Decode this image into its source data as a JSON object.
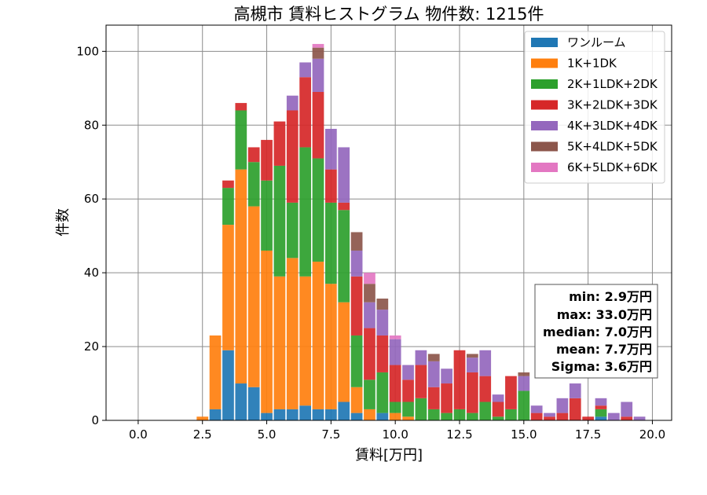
{
  "chart_data": {
    "type": "bar",
    "stacked": true,
    "title": "高槻市 賃料ヒストグラム 物件数: 1215件",
    "xlabel": "賃料[万円]",
    "ylabel": "件数",
    "x": [
      2.5,
      3.0,
      3.5,
      4.0,
      4.5,
      5.0,
      5.5,
      6.0,
      6.5,
      7.0,
      7.5,
      8.0,
      8.5,
      9.0,
      9.5,
      10.0,
      10.5,
      11.0,
      11.5,
      12.0,
      12.5,
      13.0,
      13.5,
      14.0,
      14.5,
      15.0,
      15.5,
      16.0,
      16.5,
      17.0,
      17.5,
      18.0,
      18.5,
      19.0,
      19.5
    ],
    "bin_width": 0.5,
    "xlim": [
      -1.25,
      20.75
    ],
    "ylim": [
      0,
      107.1
    ],
    "xtick_labels": [
      "0.0",
      "2.5",
      "5.0",
      "7.5",
      "10.0",
      "12.5",
      "15.0",
      "17.5",
      "20.0"
    ],
    "ytick_labels": [
      "0",
      "20",
      "40",
      "60",
      "80",
      "100"
    ],
    "grid": true,
    "legend_position": "top-right",
    "series": [
      {
        "name": "ワンルーム",
        "color": "#1f77b4",
        "values": [
          0,
          3,
          19,
          10,
          9,
          2,
          3,
          3,
          4,
          3,
          3,
          5,
          2,
          0,
          2,
          0,
          0,
          0,
          0,
          0,
          0,
          0,
          0,
          0,
          0,
          0,
          0,
          0,
          0,
          0,
          0,
          1,
          0,
          0,
          0
        ]
      },
      {
        "name": "1K+1DK",
        "color": "#ff7f0e",
        "values": [
          1,
          20,
          34,
          58,
          49,
          44,
          36,
          41,
          35,
          40,
          34,
          27,
          7,
          3,
          0,
          2,
          1,
          0,
          0,
          0,
          0,
          0,
          0,
          0,
          0,
          0,
          0,
          0,
          0,
          0,
          0,
          0,
          0,
          0,
          0
        ]
      },
      {
        "name": "2K+1LDK+2DK",
        "color": "#2ca02c",
        "values": [
          0,
          0,
          10,
          16,
          12,
          19,
          30,
          15,
          35,
          28,
          22,
          25,
          14,
          8,
          11,
          3,
          4,
          6,
          3,
          2,
          3,
          2,
          5,
          1,
          3,
          8,
          0,
          0,
          0,
          0,
          0,
          2,
          0,
          0,
          0
        ]
      },
      {
        "name": "3K+2LDK+3DK",
        "color": "#d62728",
        "values": [
          0,
          0,
          2,
          2,
          4,
          11,
          12,
          25,
          19,
          18,
          9,
          2,
          16,
          14,
          10,
          10,
          6,
          9,
          6,
          8,
          16,
          11,
          7,
          4,
          9,
          0,
          2,
          1,
          2,
          6,
          1,
          1,
          0,
          1,
          0
        ]
      },
      {
        "name": "4K+3LDK+4DK",
        "color": "#9467bd",
        "values": [
          0,
          0,
          0,
          0,
          0,
          0,
          0,
          4,
          4,
          9,
          11,
          15,
          7,
          7,
          7,
          7,
          4,
          4,
          7,
          4,
          0,
          4,
          7,
          2,
          0,
          4,
          2,
          1,
          4,
          4,
          0,
          2,
          2,
          4,
          1
        ]
      },
      {
        "name": "5K+4LDK+5DK",
        "color": "#8c564b",
        "values": [
          0,
          0,
          0,
          0,
          0,
          0,
          0,
          0,
          0,
          3,
          0,
          0,
          5,
          5,
          3,
          0,
          0,
          0,
          2,
          0,
          0,
          1,
          0,
          0,
          0,
          1,
          0,
          0,
          0,
          0,
          0,
          0,
          0,
          0,
          0
        ]
      },
      {
        "name": "6K+5LDK+6DK",
        "color": "#e377c2",
        "values": [
          0,
          0,
          0,
          0,
          0,
          0,
          0,
          0,
          0,
          1,
          0,
          0,
          0,
          3,
          0,
          1,
          0,
          0,
          0,
          0,
          0,
          0,
          0,
          0,
          0,
          0,
          0,
          0,
          0,
          0,
          0,
          0,
          0,
          0,
          0
        ]
      }
    ],
    "annotations": [
      "min: 2.9万円",
      "max: 33.0万円",
      "median: 7.0万円",
      "mean: 7.7万円",
      "Sigma: 3.6万円"
    ]
  }
}
